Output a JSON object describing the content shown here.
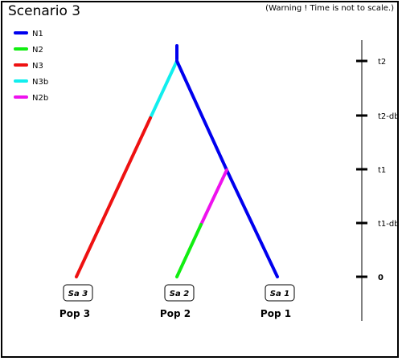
{
  "header": {
    "title": "Scenario 3",
    "warning": "(Warning ! Time is not to scale.)"
  },
  "legend": [
    {
      "label": "N1",
      "color": "#0000ee"
    },
    {
      "label": "N2",
      "color": "#11ee11"
    },
    {
      "label": "N3",
      "color": "#ee1111"
    },
    {
      "label": "N3b",
      "color": "#11eeee"
    },
    {
      "label": "N2b",
      "color": "#ee11ee"
    }
  ],
  "samples": [
    "Sa 3",
    "Sa 2",
    "Sa 1"
  ],
  "populations": [
    "Pop 3",
    "Pop 2",
    "Pop 1"
  ],
  "time_axis": [
    "t2",
    "t2-db",
    "t1",
    "t1-db",
    "0"
  ]
}
